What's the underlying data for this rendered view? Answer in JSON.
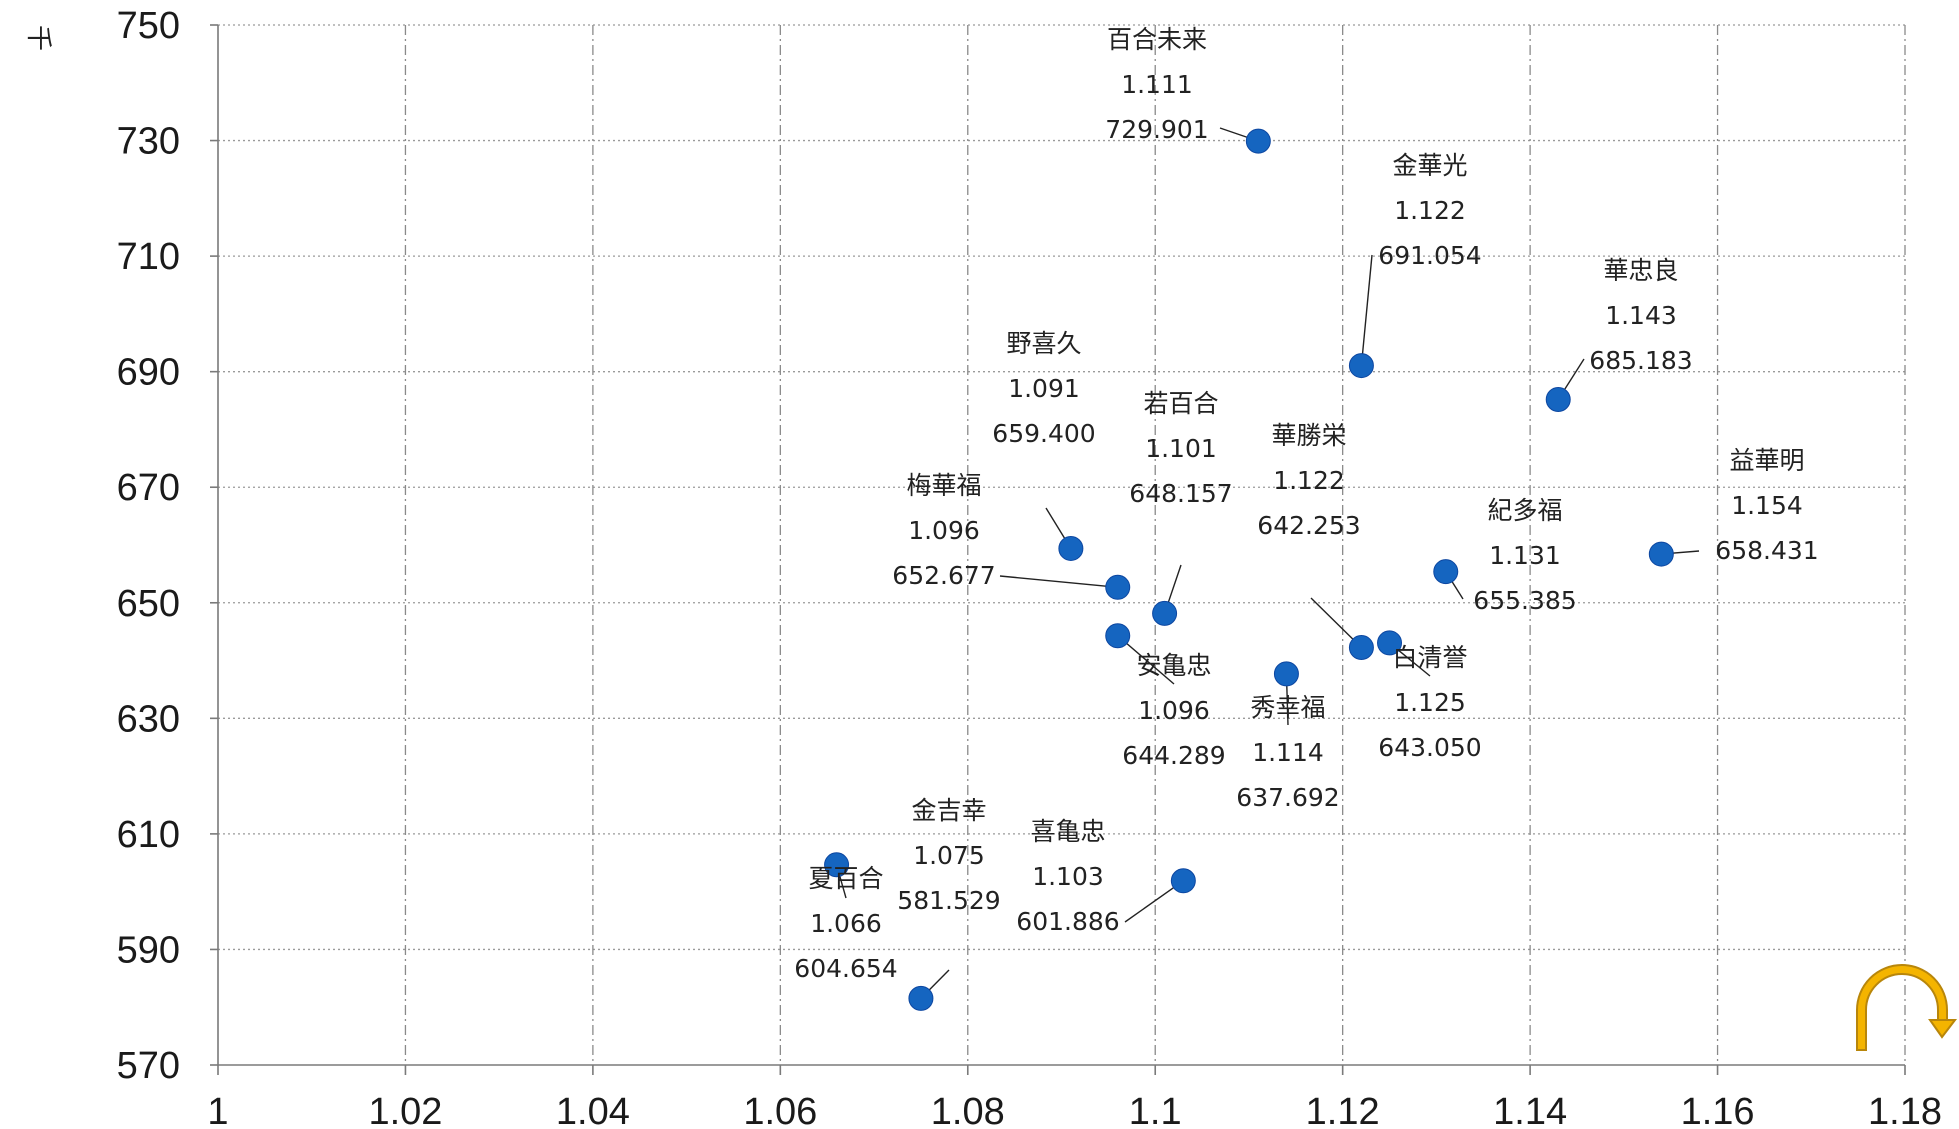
{
  "chart_data": {
    "type": "scatter",
    "xlim": [
      1,
      1.18
    ],
    "ylim": [
      570,
      750
    ],
    "x_ticks": [
      "1",
      "1.02",
      "1.04",
      "1.06",
      "1.08",
      "1.1",
      "1.12",
      "1.14",
      "1.16",
      "1.18"
    ],
    "y_ticks": [
      "570",
      "590",
      "610",
      "630",
      "650",
      "670",
      "690",
      "710",
      "730",
      "750"
    ],
    "y_unit_label": "千",
    "grid": true,
    "marker_color": "#1565c0",
    "points": [
      {
        "name": "百合未来",
        "x": 1.111,
        "y": 729.901,
        "x_label": "1.111",
        "y_label": "729.901"
      },
      {
        "name": "金華光",
        "x": 1.122,
        "y": 691.054,
        "x_label": "1.122",
        "y_label": "691.054"
      },
      {
        "name": "華忠良",
        "x": 1.143,
        "y": 685.183,
        "x_label": "1.143",
        "y_label": "685.183"
      },
      {
        "name": "野喜久",
        "x": 1.091,
        "y": 659.4,
        "x_label": "1.091",
        "y_label": "659.400"
      },
      {
        "name": "若百合",
        "x": 1.101,
        "y": 648.157,
        "x_label": "1.101",
        "y_label": "648.157"
      },
      {
        "name": "華勝栄",
        "x": 1.122,
        "y": 642.253,
        "x_label": "1.122",
        "y_label": "642.253"
      },
      {
        "name": "益華明",
        "x": 1.154,
        "y": 658.431,
        "x_label": "1.154",
        "y_label": "658.431"
      },
      {
        "name": "梅華福",
        "x": 1.096,
        "y": 652.677,
        "x_label": "1.096",
        "y_label": "652.677"
      },
      {
        "name": "紀多福",
        "x": 1.131,
        "y": 655.385,
        "x_label": "1.131",
        "y_label": "655.385"
      },
      {
        "name": "安亀忠",
        "x": 1.096,
        "y": 644.289,
        "x_label": "1.096",
        "y_label": "644.289"
      },
      {
        "name": "白清誉",
        "x": 1.125,
        "y": 643.05,
        "x_label": "1.125",
        "y_label": "643.050"
      },
      {
        "name": "秀幸福",
        "x": 1.114,
        "y": 637.692,
        "x_label": "1.114",
        "y_label": "637.692"
      },
      {
        "name": "金吉幸",
        "x": 1.075,
        "y": 581.529,
        "x_label": "1.075",
        "y_label": "581.529"
      },
      {
        "name": "喜亀忠",
        "x": 1.103,
        "y": 601.886,
        "x_label": "1.103",
        "y_label": "601.886"
      },
      {
        "name": "夏百合",
        "x": 1.066,
        "y": 604.654,
        "x_label": "1.066",
        "y_label": "604.654"
      }
    ]
  },
  "decoration": {
    "arrow_icon": "curved-arrow-icon",
    "arrow_color": "#f4b400"
  }
}
